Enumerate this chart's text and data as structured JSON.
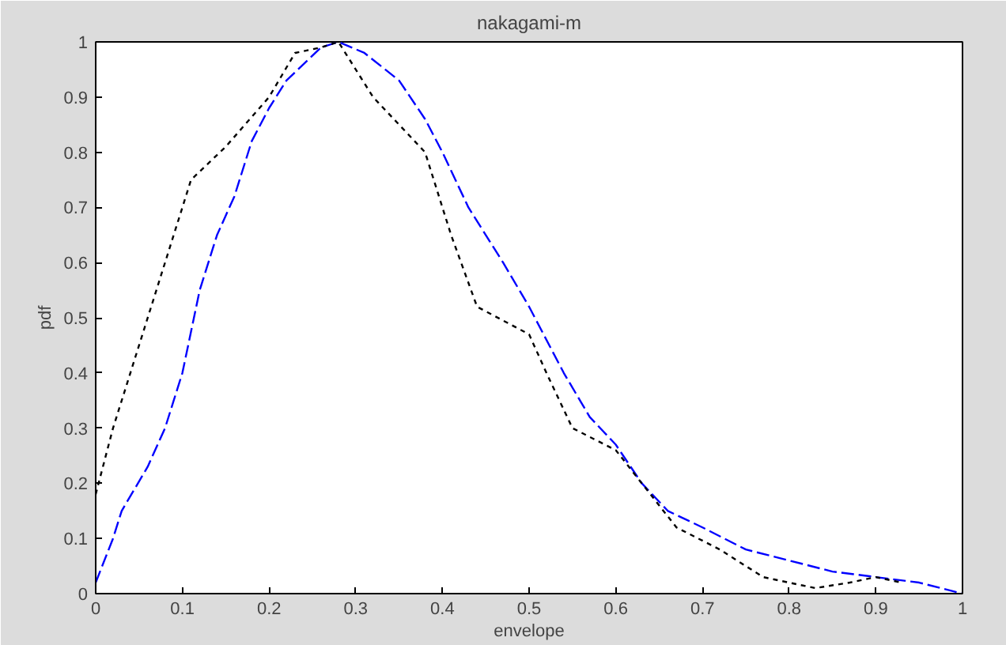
{
  "chart_data": {
    "type": "line",
    "title": "nakagami-m",
    "xlabel": "envelope",
    "ylabel": "pdf",
    "xlim": [
      0,
      1
    ],
    "ylim": [
      0,
      1
    ],
    "xticks": [
      0,
      0.1,
      0.2,
      0.3,
      0.4,
      0.5,
      0.6,
      0.7,
      0.8,
      0.9,
      1
    ],
    "yticks": [
      0,
      0.1,
      0.2,
      0.3,
      0.4,
      0.5,
      0.6,
      0.7,
      0.8,
      0.9,
      1
    ],
    "marker": "none",
    "series": [
      {
        "color": "#0000ff",
        "line_style": "dashed",
        "x": [
          0,
          0.02,
          0.03,
          0.06,
          0.08,
          0.1,
          0.12,
          0.14,
          0.16,
          0.18,
          0.2,
          0.22,
          0.26,
          0.28,
          0.31,
          0.35,
          0.38,
          0.4,
          0.43,
          0.47,
          0.5,
          0.54,
          0.57,
          0.6,
          0.63,
          0.66,
          0.7,
          0.75,
          0.8,
          0.85,
          0.9,
          0.95,
          1
        ],
        "values": [
          0.02,
          0.1,
          0.15,
          0.23,
          0.3,
          0.4,
          0.55,
          0.65,
          0.72,
          0.82,
          0.88,
          0.93,
          0.99,
          1.0,
          0.98,
          0.93,
          0.86,
          0.8,
          0.7,
          0.6,
          0.52,
          0.4,
          0.32,
          0.27,
          0.2,
          0.15,
          0.12,
          0.08,
          0.06,
          0.04,
          0.03,
          0.02,
          0.0
        ]
      },
      {
        "color": "#000000",
        "line_style": "dotted",
        "x": [
          0,
          0.02,
          0.05,
          0.08,
          0.11,
          0.15,
          0.2,
          0.23,
          0.26,
          0.28,
          0.32,
          0.38,
          0.41,
          0.44,
          0.5,
          0.52,
          0.55,
          0.6,
          0.67,
          0.72,
          0.77,
          0.8,
          0.83,
          0.87,
          0.9,
          0.93
        ],
        "values": [
          0.18,
          0.3,
          0.45,
          0.6,
          0.75,
          0.81,
          0.9,
          0.98,
          0.99,
          1.0,
          0.9,
          0.8,
          0.65,
          0.52,
          0.47,
          0.4,
          0.3,
          0.26,
          0.12,
          0.08,
          0.03,
          0.02,
          0.01,
          0.02,
          0.03,
          0.02
        ]
      }
    ]
  }
}
